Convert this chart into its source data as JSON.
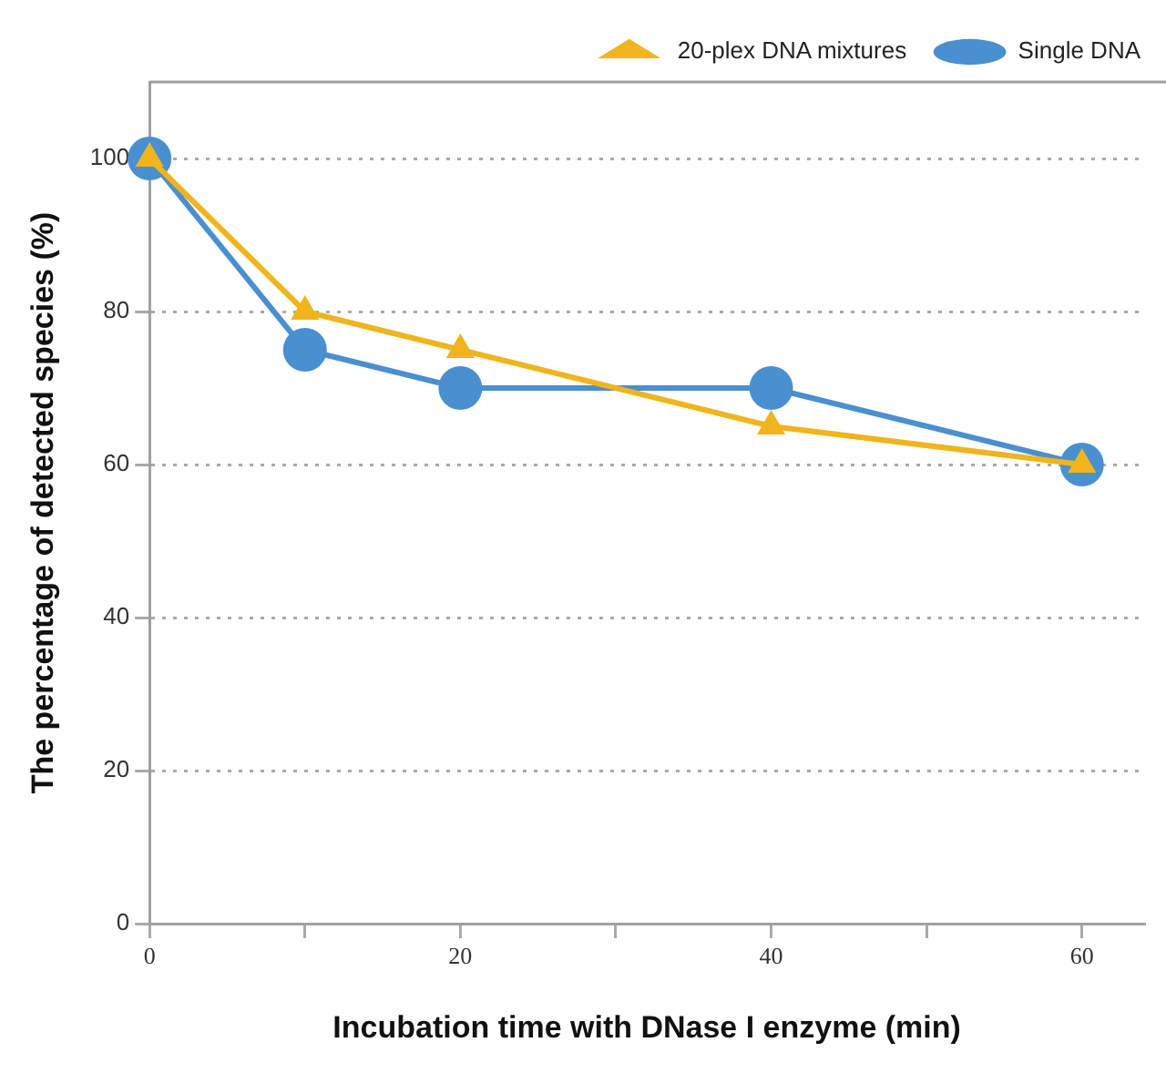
{
  "chart_data": {
    "type": "line",
    "xlabel": "Incubation time with DNase I enzyme (min)",
    "ylabel": "The percentage of detected species (%)",
    "x": [
      0,
      10,
      20,
      40,
      60
    ],
    "series": [
      {
        "name": "20-plex DNA mixtures",
        "color": "#f0b41c",
        "marker": "triangle",
        "values": [
          100,
          80,
          75,
          65,
          60
        ]
      },
      {
        "name": "Single DNA",
        "color": "#4a8fd0",
        "marker": "circle",
        "values": [
          100,
          75,
          70,
          70,
          60
        ]
      }
    ],
    "xlim": [
      0,
      64
    ],
    "xticks": [
      0,
      {
        "value": 10,
        "label": null
      },
      20,
      {
        "value": 30,
        "label": null
      },
      40,
      {
        "value": 50,
        "label": null
      },
      60
    ],
    "ylim": [
      0,
      110
    ],
    "yticks": [
      0,
      20,
      40,
      60,
      80,
      100
    ],
    "grid": "y",
    "legend": "top right",
    "line_style": "solid"
  }
}
